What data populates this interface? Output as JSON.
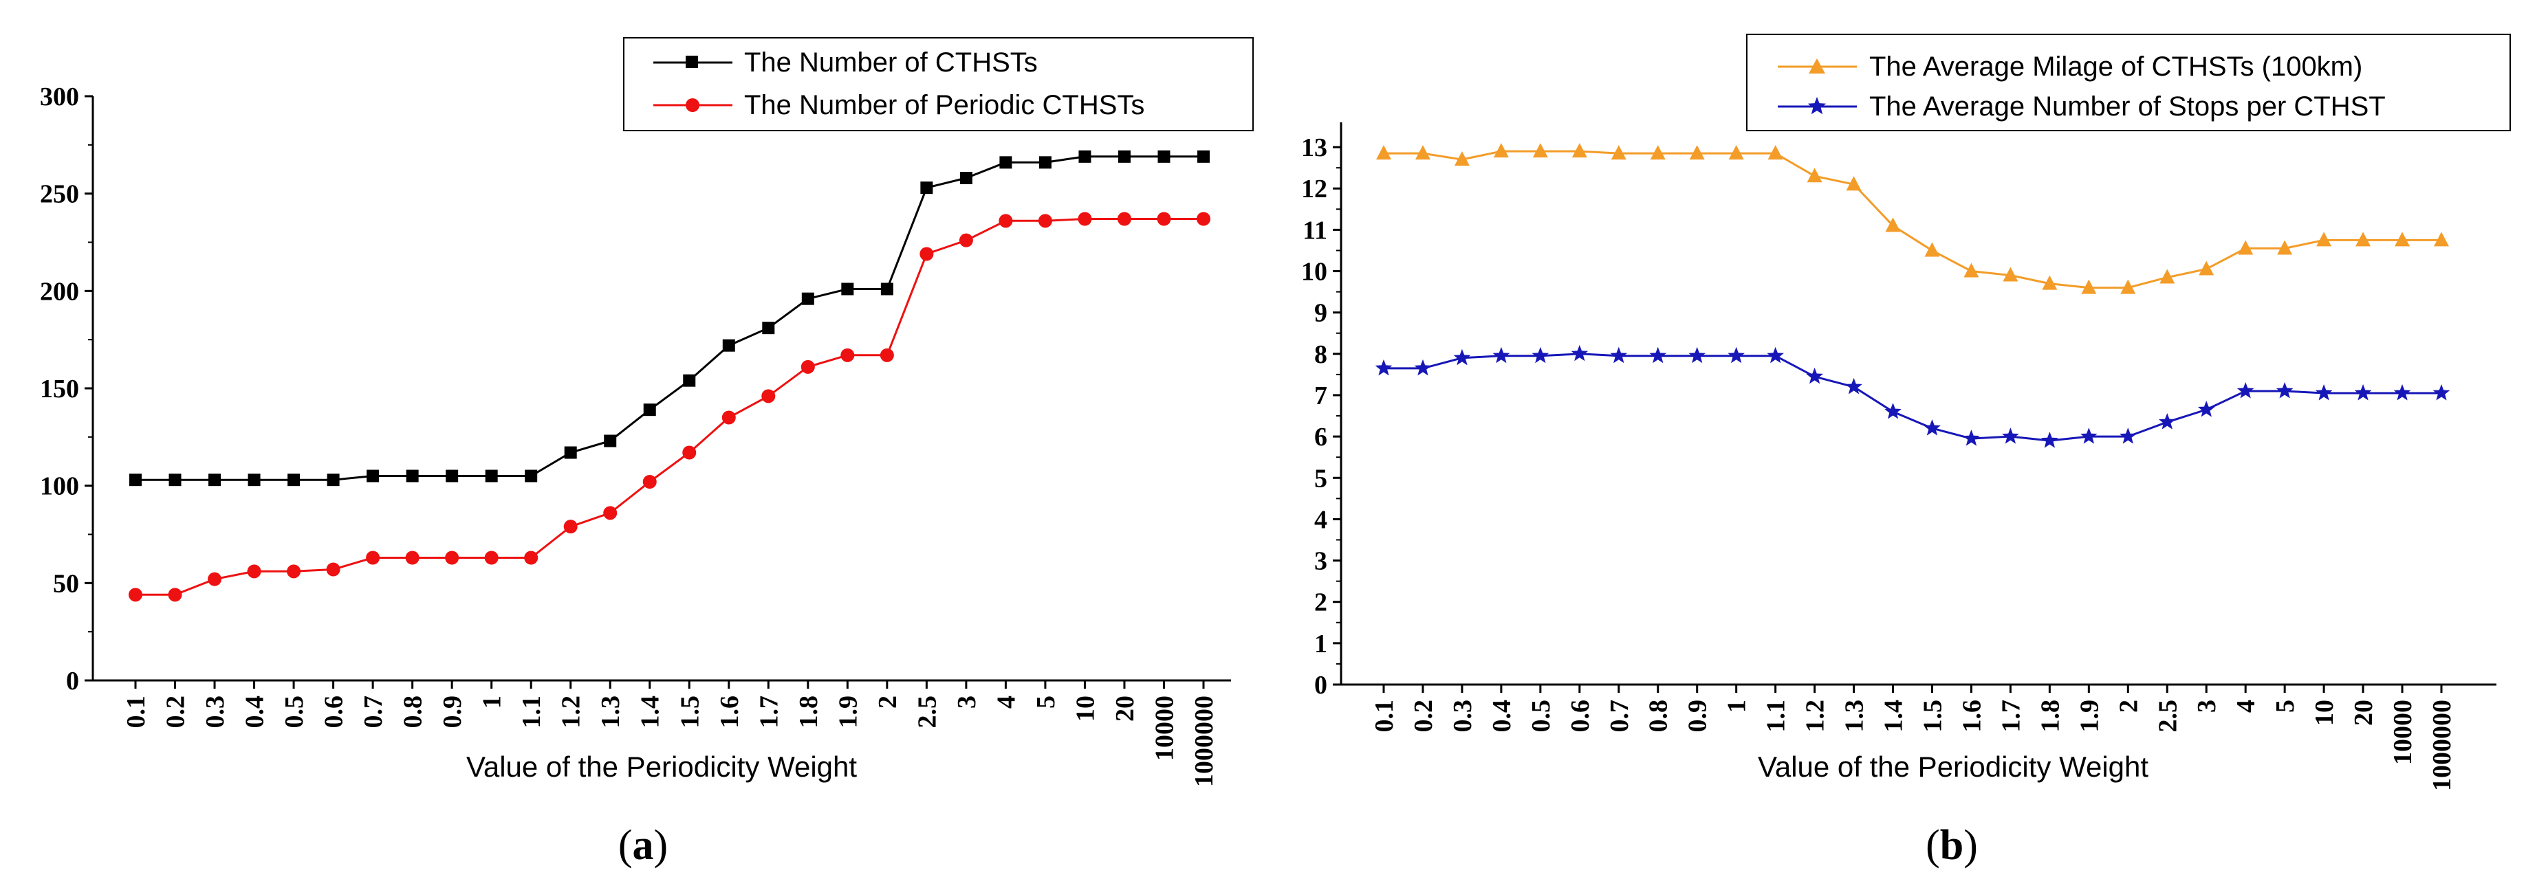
{
  "chart_data": [
    {
      "type": "line",
      "panel_label": "a",
      "categories": [
        "0.1",
        "0.2",
        "0.3",
        "0.4",
        "0.5",
        "0.6",
        "0.7",
        "0.8",
        "0.9",
        "1",
        "1.1",
        "1.2",
        "1.3",
        "1.4",
        "1.5",
        "1.6",
        "1.7",
        "1.8",
        "1.9",
        "2",
        "2.5",
        "3",
        "4",
        "5",
        "10",
        "20",
        "10000",
        "1000000"
      ],
      "series": [
        {
          "name": "The Number of CTHSTs",
          "color": "#000000",
          "marker": "square",
          "values": [
            103,
            103,
            103,
            103,
            103,
            103,
            105,
            105,
            105,
            105,
            105,
            117,
            123,
            139,
            154,
            172,
            181,
            196,
            201,
            201,
            253,
            258,
            266,
            266,
            269,
            269,
            269,
            269
          ]
        },
        {
          "name": "The Number of Periodic CTHSTs",
          "color": "#ee1111",
          "marker": "circle",
          "values": [
            44,
            44,
            52,
            56,
            56,
            57,
            63,
            63,
            63,
            63,
            63,
            79,
            86,
            102,
            117,
            135,
            146,
            161,
            167,
            167,
            219,
            226,
            236,
            236,
            237,
            237,
            237,
            237
          ]
        }
      ],
      "yticks": [
        "0",
        "50",
        "100",
        "150",
        "200",
        "250",
        "300"
      ],
      "ylim": [
        0,
        300
      ],
      "xlabel": "Value of the Periodicity Weight",
      "ylabel": "",
      "legend": "top-right"
    },
    {
      "type": "line",
      "panel_label": "b",
      "categories": [
        "0.1",
        "0.2",
        "0.3",
        "0.4",
        "0.5",
        "0.6",
        "0.7",
        "0.8",
        "0.9",
        "1",
        "1.1",
        "1.2",
        "1.3",
        "1.4",
        "1.5",
        "1.6",
        "1.7",
        "1.8",
        "1.9",
        "2",
        "2.5",
        "3",
        "4",
        "5",
        "10",
        "20",
        "10000",
        "1000000"
      ],
      "series": [
        {
          "name": "The Average Milage of CTHSTs (100km)",
          "color": "#f39c28",
          "marker": "triangle",
          "values": [
            12.85,
            12.85,
            12.7,
            12.9,
            12.9,
            12.9,
            12.85,
            12.85,
            12.85,
            12.85,
            12.85,
            12.3,
            12.1,
            11.1,
            10.5,
            10.0,
            9.9,
            9.7,
            9.6,
            9.6,
            9.85,
            10.05,
            10.55,
            10.55,
            10.75,
            10.75,
            10.75,
            10.75
          ]
        },
        {
          "name": "The Average Number of Stops per CTHST",
          "color": "#1717b8",
          "marker": "star",
          "values": [
            7.65,
            7.65,
            7.9,
            7.95,
            7.95,
            8.0,
            7.95,
            7.95,
            7.95,
            7.95,
            7.95,
            7.45,
            7.2,
            6.6,
            6.2,
            5.95,
            6.0,
            5.9,
            6.0,
            6.0,
            6.35,
            6.65,
            7.1,
            7.1,
            7.05,
            7.05,
            7.05,
            7.05
          ]
        }
      ],
      "yticks": [
        "0",
        "1",
        "2",
        "3",
        "4",
        "5",
        "6",
        "7",
        "8",
        "9",
        "10",
        "11",
        "12",
        "13"
      ],
      "ylim": [
        0,
        13.6
      ],
      "xlabel": "Value of the Periodicity Weight",
      "ylabel": "",
      "legend": "top-right"
    }
  ],
  "panel_labels": {
    "a": {
      "open": "(",
      "letter": "a",
      "close": ")"
    },
    "b": {
      "open": "(",
      "letter": "b",
      "close": ")"
    }
  }
}
